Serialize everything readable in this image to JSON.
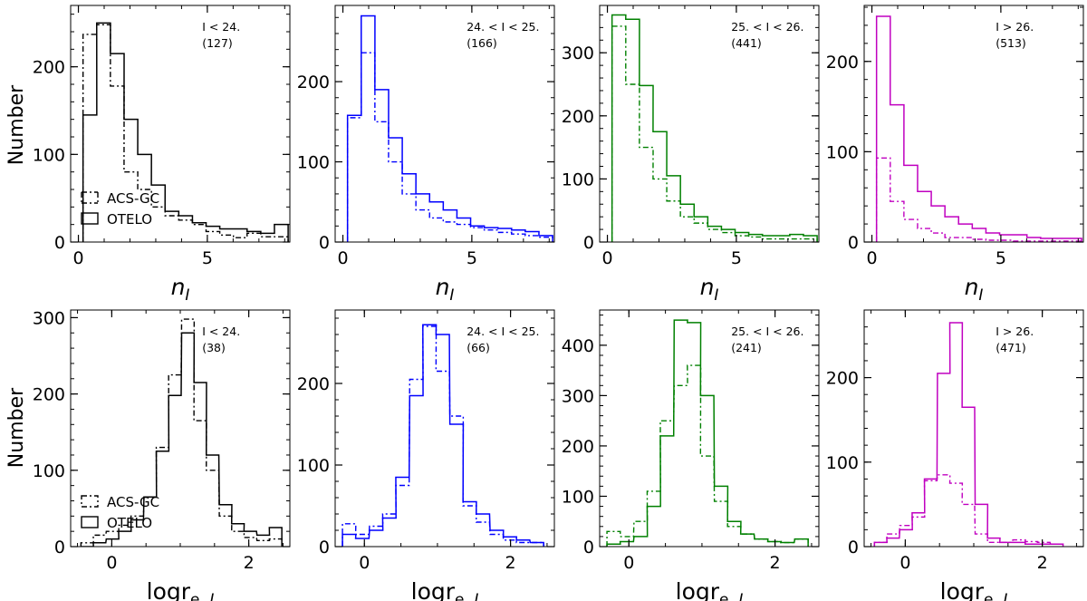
{
  "figure": {
    "ylabel": "Number",
    "legend": {
      "acs_label": "ACS-GC",
      "otelo_label": "OTELO"
    }
  },
  "chart_data": [
    {
      "type": "histogram",
      "row": 0,
      "col": 0,
      "color": "#000000",
      "xlabel": "n_I",
      "xlim": [
        -0.3,
        8.2
      ],
      "ylim": [
        0,
        270
      ],
      "xticks": [
        0,
        5
      ],
      "yticks": [
        0,
        100,
        200
      ],
      "bin_width": 0.533,
      "bins": [
        0.18,
        0.71,
        1.24,
        1.77,
        2.3,
        2.83,
        3.36,
        3.89,
        4.42,
        4.95,
        5.48,
        6.01,
        6.54,
        7.07,
        7.6
      ],
      "otelo": [
        145,
        250,
        215,
        140,
        100,
        65,
        35,
        30,
        22,
        18,
        15,
        15,
        12,
        10,
        20
      ],
      "acs": [
        237,
        248,
        178,
        80,
        60,
        40,
        30,
        25,
        20,
        12,
        8,
        5,
        10,
        6,
        6
      ],
      "annotation": {
        "line1": "I < 24.",
        "line2": "(127)"
      }
    },
    {
      "type": "histogram",
      "row": 0,
      "col": 1,
      "color": "#0000ff",
      "xlabel": "n_I",
      "xlim": [
        -0.3,
        8.2
      ],
      "ylim": [
        0,
        295
      ],
      "xticks": [
        0,
        5
      ],
      "yticks": [
        0,
        100,
        200
      ],
      "bin_width": 0.533,
      "bins": [
        0.18,
        0.71,
        1.24,
        1.77,
        2.3,
        2.83,
        3.36,
        3.89,
        4.42,
        4.95,
        5.48,
        6.01,
        6.54,
        7.07,
        7.6
      ],
      "otelo": [
        158,
        282,
        190,
        130,
        85,
        60,
        50,
        40,
        30,
        20,
        18,
        17,
        15,
        13,
        8
      ],
      "acs": [
        155,
        236,
        150,
        100,
        60,
        40,
        30,
        25,
        22,
        18,
        15,
        12,
        10,
        8,
        6
      ],
      "annotation": {
        "line1": "24. < I < 25.",
        "line2": "(166)"
      }
    },
    {
      "type": "histogram",
      "row": 0,
      "col": 2,
      "color": "#008000",
      "xlabel": "n_I",
      "xlim": [
        -0.3,
        8.2
      ],
      "ylim": [
        0,
        375
      ],
      "xticks": [
        0,
        5
      ],
      "yticks": [
        0,
        100,
        200,
        300
      ],
      "bin_width": 0.533,
      "bins": [
        0.18,
        0.71,
        1.24,
        1.77,
        2.3,
        2.83,
        3.36,
        3.89,
        4.42,
        4.95,
        5.48,
        6.01,
        6.54,
        7.07,
        7.6
      ],
      "otelo": [
        360,
        353,
        248,
        175,
        105,
        60,
        40,
        25,
        20,
        15,
        12,
        10,
        10,
        12,
        10
      ],
      "acs": [
        342,
        250,
        150,
        100,
        65,
        40,
        30,
        20,
        15,
        10,
        8,
        5,
        5,
        5,
        5
      ],
      "annotation": {
        "line1": "25. < I < 26.",
        "line2": "(441)"
      }
    },
    {
      "type": "histogram",
      "row": 0,
      "col": 3,
      "color": "#c000c0",
      "xlabel": "n_I",
      "xlim": [
        -0.3,
        8.2
      ],
      "ylim": [
        0,
        262
      ],
      "xticks": [
        0,
        5
      ],
      "yticks": [
        0,
        100,
        200
      ],
      "bin_width": 0.533,
      "bins": [
        0.18,
        0.71,
        1.24,
        1.77,
        2.3,
        2.83,
        3.36,
        3.89,
        4.42,
        4.95,
        5.48,
        6.01,
        6.54,
        7.07,
        7.6
      ],
      "otelo": [
        250,
        152,
        85,
        56,
        40,
        28,
        20,
        15,
        10,
        8,
        8,
        5,
        4,
        4,
        4
      ],
      "acs": [
        93,
        45,
        25,
        15,
        10,
        5,
        5,
        3,
        2,
        2,
        1,
        1,
        1,
        1,
        1
      ],
      "annotation": {
        "line1": "I > 26.",
        "line2": "(513)"
      }
    },
    {
      "type": "histogram",
      "row": 1,
      "col": 0,
      "color": "#000000",
      "xlabel": "log r_e,I",
      "xlim": [
        -0.6,
        2.6
      ],
      "ylim": [
        0,
        310
      ],
      "xticks": [
        0,
        2
      ],
      "yticks": [
        0,
        100,
        200,
        300
      ],
      "bin_width": 0.183,
      "bins": [
        -0.45,
        -0.27,
        -0.08,
        0.1,
        0.28,
        0.47,
        0.65,
        0.83,
        1.02,
        1.2,
        1.38,
        1.57,
        1.75,
        1.93,
        2.12,
        2.3
      ],
      "otelo": [
        0,
        5,
        10,
        20,
        35,
        65,
        125,
        198,
        280,
        215,
        120,
        55,
        30,
        20,
        15,
        25
      ],
      "acs": [
        5,
        15,
        20,
        28,
        40,
        65,
        130,
        225,
        298,
        165,
        100,
        40,
        20,
        12,
        8,
        10
      ],
      "annotation": {
        "line1": "I < 24.",
        "line2": "(38)"
      }
    },
    {
      "type": "histogram",
      "row": 1,
      "col": 1,
      "color": "#0000ff",
      "xlabel": "log r_e,I",
      "xlim": [
        -0.4,
        2.6
      ],
      "ylim": [
        0,
        290
      ],
      "xticks": [
        0,
        2
      ],
      "yticks": [
        0,
        100,
        200
      ],
      "bin_width": 0.183,
      "bins": [
        -0.3,
        -0.12,
        0.07,
        0.25,
        0.43,
        0.62,
        0.8,
        0.98,
        1.17,
        1.35,
        1.53,
        1.72,
        1.9,
        2.08,
        2.27
      ],
      "otelo": [
        15,
        10,
        20,
        35,
        85,
        185,
        272,
        260,
        150,
        55,
        40,
        20,
        12,
        8,
        5
      ],
      "acs": [
        28,
        15,
        25,
        40,
        75,
        205,
        270,
        215,
        160,
        50,
        30,
        15,
        8,
        5,
        5
      ],
      "annotation": {
        "line1": "24. < I < 25.",
        "line2": "(66)"
      }
    },
    {
      "type": "histogram",
      "row": 1,
      "col": 2,
      "color": "#008000",
      "xlabel": "log r_e,I",
      "xlim": [
        -0.4,
        2.6
      ],
      "ylim": [
        0,
        470
      ],
      "xticks": [
        0,
        2
      ],
      "yticks": [
        0,
        100,
        200,
        300,
        400
      ],
      "bin_width": 0.183,
      "bins": [
        -0.3,
        -0.12,
        0.07,
        0.25,
        0.43,
        0.62,
        0.8,
        0.98,
        1.17,
        1.35,
        1.53,
        1.72,
        1.9,
        2.08,
        2.27
      ],
      "otelo": [
        5,
        10,
        20,
        80,
        220,
        450,
        445,
        300,
        120,
        50,
        25,
        15,
        10,
        8,
        15
      ],
      "acs": [
        30,
        20,
        50,
        110,
        250,
        320,
        360,
        180,
        90,
        40,
        25,
        15,
        10,
        8,
        15
      ],
      "annotation": {
        "line1": "25. < I < 26.",
        "line2": "(241)"
      }
    },
    {
      "type": "histogram",
      "row": 1,
      "col": 3,
      "color": "#c000c0",
      "xlabel": "log r_e,I",
      "xlim": [
        -0.6,
        2.6
      ],
      "ylim": [
        0,
        280
      ],
      "xticks": [
        0,
        2
      ],
      "yticks": [
        0,
        100,
        200
      ],
      "bin_width": 0.183,
      "bins": [
        -0.45,
        -0.27,
        -0.08,
        0.1,
        0.28,
        0.47,
        0.65,
        0.83,
        1.02,
        1.2,
        1.38,
        1.57,
        1.75,
        1.93,
        2.12
      ],
      "otelo": [
        5,
        10,
        20,
        40,
        80,
        205,
        265,
        165,
        50,
        10,
        5,
        5,
        3,
        3,
        3
      ],
      "acs": [
        5,
        15,
        25,
        35,
        78,
        85,
        75,
        50,
        15,
        5,
        5,
        8,
        6,
        5,
        3
      ],
      "annotation": {
        "line1": "I > 26.",
        "line2": "(471)"
      }
    }
  ]
}
